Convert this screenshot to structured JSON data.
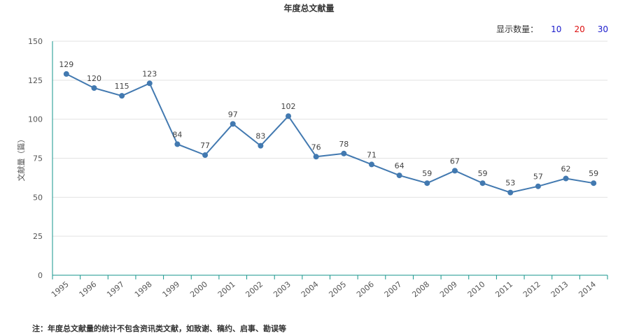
{
  "title": "年度总文献量",
  "count_selector": {
    "label": "显示数量：",
    "options": [
      {
        "text": "10",
        "color": "#1a1acc"
      },
      {
        "text": "20",
        "color": "#dd1111"
      },
      {
        "text": "30",
        "color": "#1a1acc"
      }
    ]
  },
  "note": "注：年度总文献量的统计不包含资讯类文献，如致谢、稿约、启事、勘误等",
  "colors": {
    "line": "#4279b0",
    "axis": "#16958c",
    "grid": "#e2e2e2"
  },
  "chart_data": {
    "type": "line",
    "title": "年度总文献量",
    "ylabel": "文献量（篇）",
    "xlabel": "",
    "ylim": [
      0,
      150
    ],
    "yticks": [
      0,
      25,
      50,
      75,
      100,
      125,
      150
    ],
    "grid": true,
    "categories": [
      "1995",
      "1996",
      "1997",
      "1998",
      "1999",
      "2000",
      "2001",
      "2002",
      "2003",
      "2004",
      "2005",
      "2006",
      "2007",
      "2008",
      "2009",
      "2010",
      "2011",
      "2012",
      "2013",
      "2014"
    ],
    "series": [
      {
        "values": [
          129,
          120,
          115,
          123,
          84,
          77,
          97,
          83,
          102,
          76,
          78,
          71,
          64,
          59,
          67,
          59,
          53,
          57,
          62,
          59
        ]
      }
    ]
  }
}
